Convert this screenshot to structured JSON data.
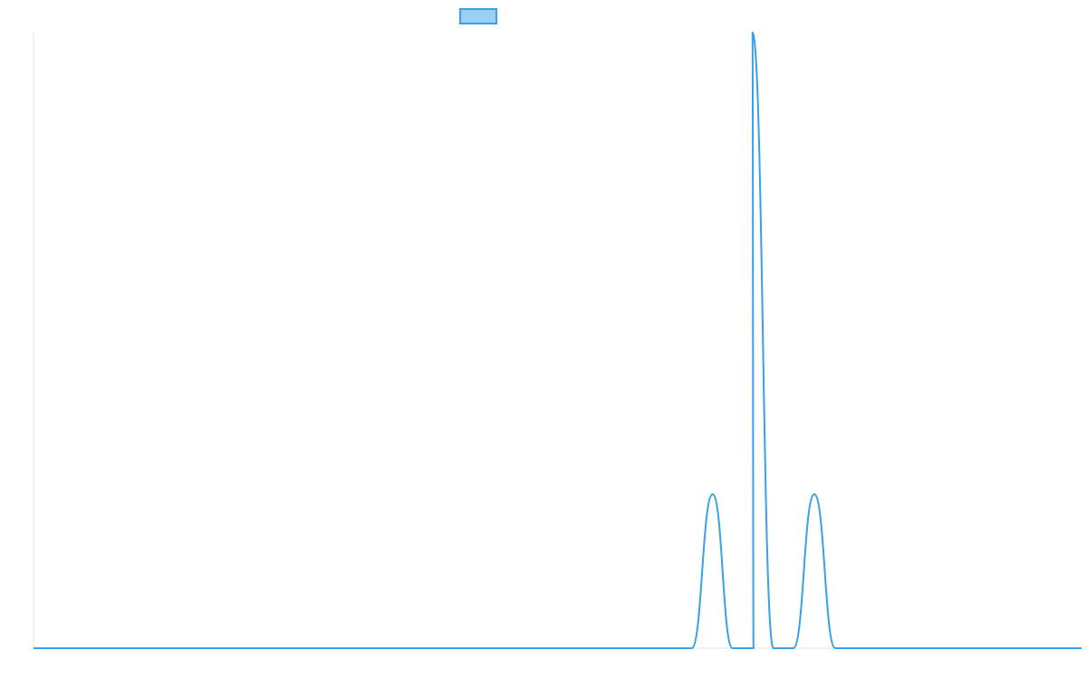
{
  "colors": {
    "series_line": "#36a2eb",
    "series_fill": "#9ad0f5",
    "axis": "#e6e6e6",
    "background": "#ffffff"
  },
  "chart_data": {
    "type": "line",
    "title": "",
    "xlabel": "",
    "ylabel": "",
    "grid": false,
    "legend_position": "top",
    "xlim": [
      0,
      1
    ],
    "ylim": [
      0,
      1
    ],
    "series": [
      {
        "name": "",
        "points": [
          {
            "x": 0.0,
            "y": 0.0
          },
          {
            "x": 0.628,
            "y": 0.0
          },
          {
            "x": 0.648,
            "y": 0.25
          },
          {
            "x": 0.667,
            "y": 0.0
          },
          {
            "x": 0.687,
            "y": 0.0
          },
          {
            "x": 0.686,
            "y": 1.0
          },
          {
            "x": 0.706,
            "y": 0.0
          },
          {
            "x": 0.725,
            "y": 0.0
          },
          {
            "x": 0.745,
            "y": 0.25
          },
          {
            "x": 0.765,
            "y": 0.0
          },
          {
            "x": 1.0,
            "y": 0.0
          }
        ]
      }
    ]
  }
}
